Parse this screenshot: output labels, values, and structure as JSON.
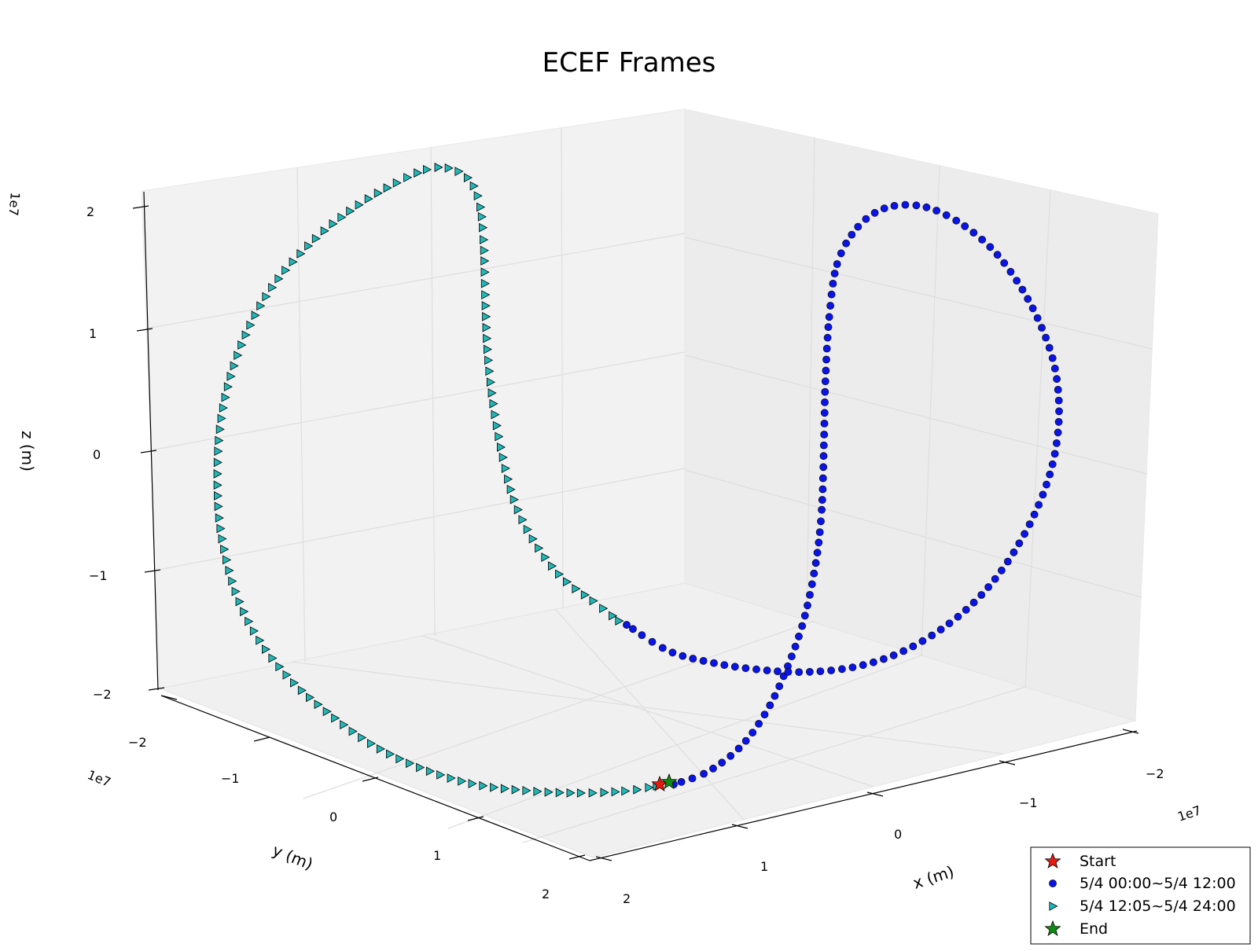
{
  "chart_data": {
    "type": "scatter",
    "projection": "3d",
    "title": "ECEF Frames",
    "xlabel": "x (m)",
    "ylabel": "y (m)",
    "zlabel": "z (m)",
    "x_ticks": [
      "2",
      "1",
      "0",
      "−1",
      "−2"
    ],
    "y_ticks": [
      "−2",
      "−1",
      "0",
      "1",
      "2"
    ],
    "z_ticks": [
      "2",
      "1",
      "0",
      "−1",
      "−2"
    ],
    "offset_label": "1e7",
    "xlim": [
      -2,
      2
    ],
    "ylim": [
      -2,
      2
    ],
    "zlim": [
      -2,
      2
    ],
    "grid": true,
    "legend": {
      "placement": "bottom-right",
      "entries": [
        {
          "label": "Start",
          "marker": "star",
          "color": "#e8190e"
        },
        {
          "label": "5/4 00:00~5/4 12:00",
          "marker": "circle",
          "color": "#0a14e6"
        },
        {
          "label": "5/4 12:05~5/4 24:00",
          "marker": "triangle-right",
          "color": "#20b8b8"
        },
        {
          "label": "End",
          "marker": "star",
          "color": "#0f8a14"
        }
      ]
    },
    "series": [
      {
        "name": "5/4 00:00~5/4 12:00",
        "marker": "circle",
        "color": "#0a14e6",
        "points": 145,
        "x_range": [
          -2.0,
          2.0
        ],
        "y_range": [
          -2.0,
          2.0
        ],
        "z_range": [
          -2.0,
          2.0
        ]
      },
      {
        "name": "5/4 12:05~5/4 24:00",
        "marker": "triangle-right",
        "color": "#20b8b8",
        "points": 143,
        "x_range": [
          -2.0,
          2.0
        ],
        "y_range": [
          -2.0,
          2.0
        ],
        "z_range": [
          -2.0,
          2.0
        ]
      }
    ],
    "start_point": {
      "label": "Start",
      "color": "#e8190e"
    },
    "end_point": {
      "label": "End",
      "color": "#0f8a14"
    }
  }
}
